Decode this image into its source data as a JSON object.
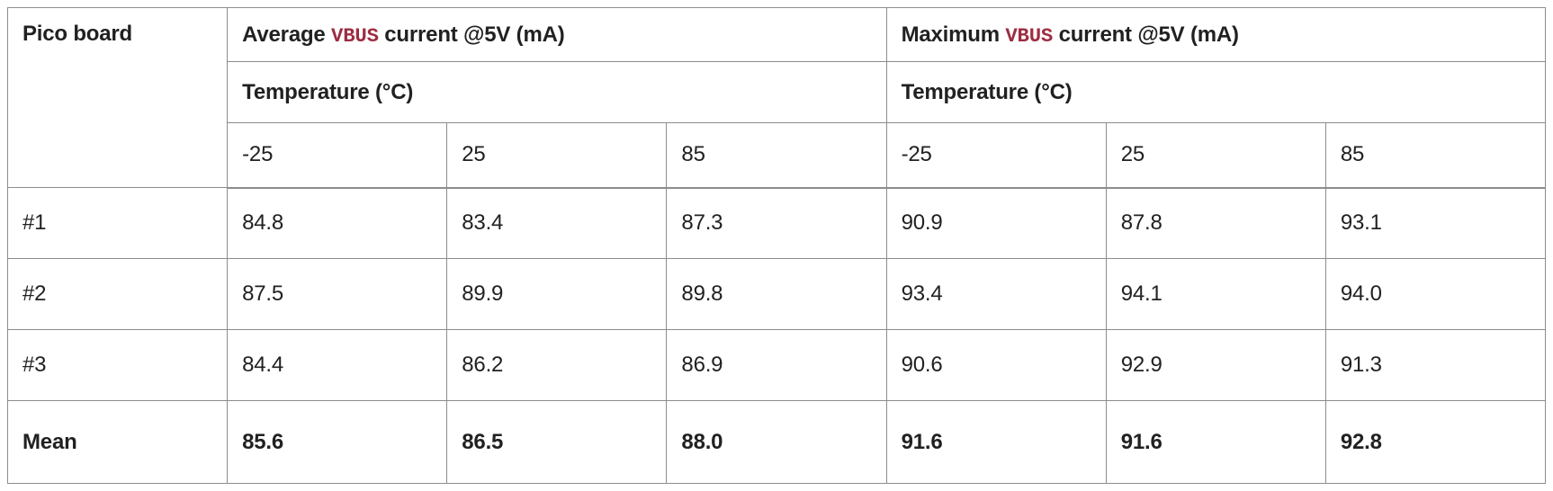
{
  "colors": {
    "vbus_accent": "#9d2d42",
    "border": "#8c8c8c",
    "text": "#212121",
    "background": "#ffffff"
  },
  "table": {
    "corner_header": "Pico board",
    "groups": [
      {
        "prefix": "Average",
        "code": "VBUS",
        "suffix": "current @5V (mA)",
        "subheader": "Temperature (°C)",
        "temps": [
          "-25",
          "25",
          "85"
        ]
      },
      {
        "prefix": "Maximum",
        "code": "VBUS",
        "suffix": "current @5V (mA)",
        "subheader": "Temperature (°C)",
        "temps": [
          "-25",
          "25",
          "85"
        ]
      }
    ],
    "rows": [
      {
        "label": "#1",
        "values": [
          "84.8",
          "83.4",
          "87.3",
          "90.9",
          "87.8",
          "93.1"
        ]
      },
      {
        "label": "#2",
        "values": [
          "87.5",
          "89.9",
          "89.8",
          "93.4",
          "94.1",
          "94.0"
        ]
      },
      {
        "label": "#3",
        "values": [
          "84.4",
          "86.2",
          "86.9",
          "90.6",
          "92.9",
          "91.3"
        ]
      },
      {
        "label": "Mean",
        "values": [
          "85.6",
          "86.5",
          "88.0",
          "91.6",
          "91.6",
          "92.8"
        ]
      }
    ]
  },
  "chart_data": {
    "type": "table",
    "title": "Pico board VBUS current @5V (mA) vs Temperature",
    "column_groups": [
      "Average VBUS current @5V (mA) — Temperature (°C)",
      "Maximum VBUS current @5V (mA) — Temperature (°C)"
    ],
    "columns": [
      "Pico board",
      "Average @ -25°C",
      "Average @ 25°C",
      "Average @ 85°C",
      "Maximum @ -25°C",
      "Maximum @ 25°C",
      "Maximum @ 85°C"
    ],
    "rows": [
      [
        "#1",
        84.8,
        83.4,
        87.3,
        90.9,
        87.8,
        93.1
      ],
      [
        "#2",
        87.5,
        89.9,
        89.8,
        93.4,
        94.1,
        94.0
      ],
      [
        "#3",
        84.4,
        86.2,
        86.9,
        90.6,
        92.9,
        91.3
      ],
      [
        "Mean",
        85.6,
        86.5,
        88.0,
        91.6,
        91.6,
        92.8
      ]
    ],
    "units": "mA",
    "notes": "Mean row is bold; VBUS rendered as red monospace code text"
  }
}
